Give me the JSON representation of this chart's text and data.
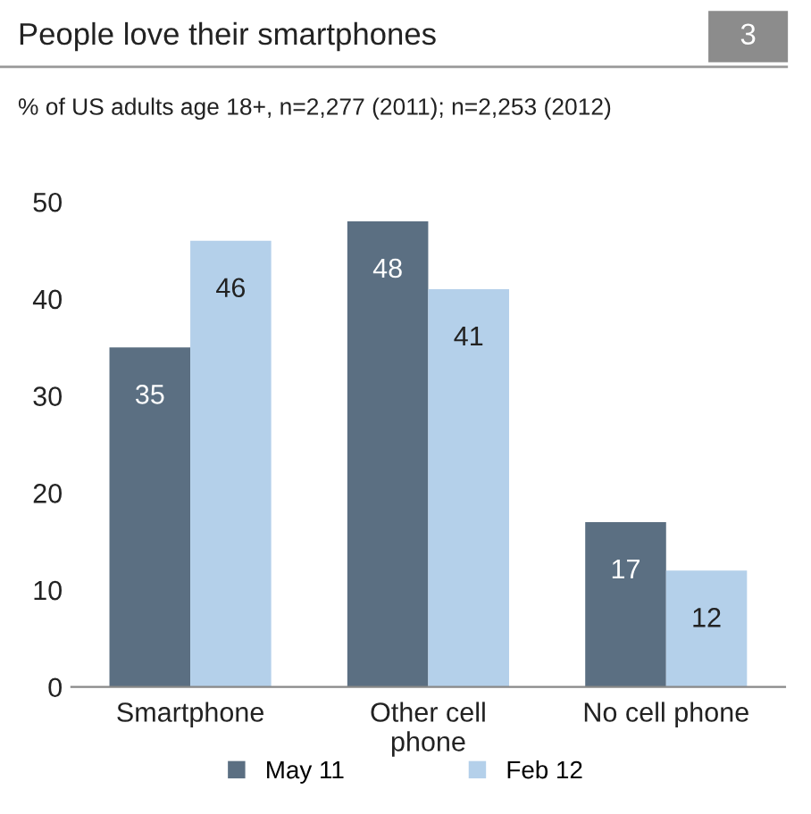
{
  "chart_data": {
    "type": "bar",
    "title": "People love their smartphones",
    "subtitle": "% of US adults age 18+, n=2,277 (2011); n=2,253 (2012)",
    "annotations": [
      "3"
    ],
    "categories": [
      "Smartphone",
      "Other cell\nphone",
      "No cell phone"
    ],
    "series": [
      {
        "name": "May 11",
        "color": "#5b6f82",
        "values": [
          35,
          48,
          17
        ]
      },
      {
        "name": "Feb 12",
        "color": "#b4d0ea",
        "values": [
          46,
          41,
          12
        ]
      }
    ],
    "ylim": [
      0,
      50
    ],
    "yticks": [
      0,
      10,
      20,
      30,
      40,
      50
    ],
    "grid": false,
    "legend": "bottom",
    "data_labels": true
  }
}
